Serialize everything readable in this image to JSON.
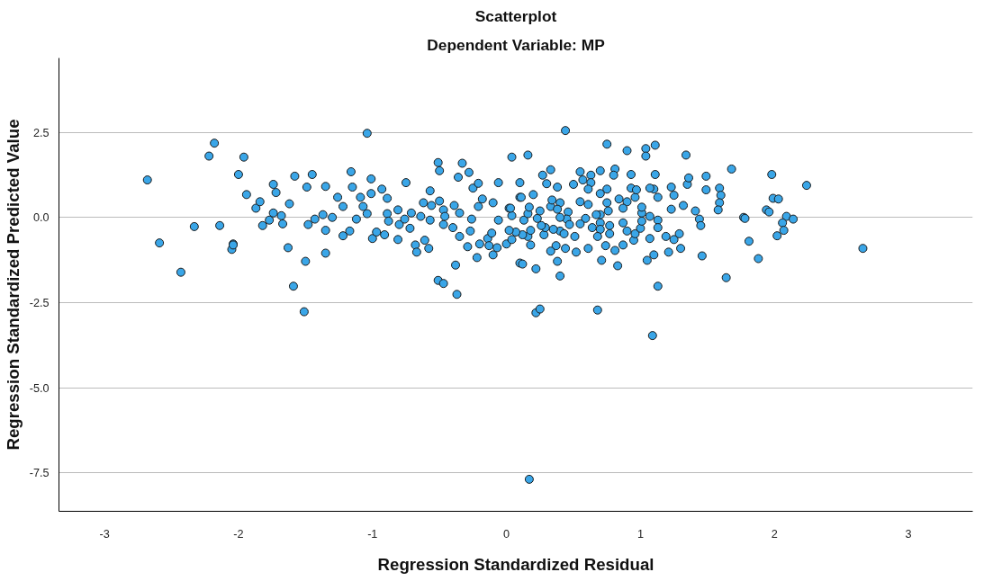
{
  "chart_data": {
    "type": "scatter",
    "title": "Scatterplot",
    "subtitle": "Dependent Variable: MP",
    "xlabel": "Regression Standardized Residual",
    "ylabel": "Regression Standardized Predicted Value",
    "xlim": [
      -3.34,
      3.48
    ],
    "ylim": [
      -8.63,
      4.68
    ],
    "xticks": [
      -3,
      -2,
      -1,
      0,
      1,
      2,
      3
    ],
    "yticks": [
      {
        "value": -7.5,
        "label": "-7.5"
      },
      {
        "value": -5.0,
        "label": "-5.0"
      },
      {
        "value": -2.5,
        "label": "-2.5"
      },
      {
        "value": 0.0,
        "label": "0.0"
      },
      {
        "value": 2.5,
        "label": "2.5"
      }
    ],
    "grid": "y",
    "marker": "circle",
    "series": [
      {
        "color": "#3aa6e8",
        "x": [
          -2.68,
          -2.59,
          -2.43,
          -2.18,
          -2.14,
          -2.04,
          -2.05,
          -1.94,
          -2.0,
          -1.96,
          -1.87,
          -1.84,
          -1.82,
          -1.77,
          -1.74,
          -1.74,
          -1.72,
          -1.68,
          -1.67,
          -1.62,
          -1.63,
          -1.58,
          -1.59,
          -1.5,
          -1.48,
          -1.49,
          -1.45,
          -1.43,
          -1.37,
          -1.35,
          -1.35,
          -1.35,
          -1.3,
          -1.26,
          -1.22,
          -1.22,
          -1.17,
          -1.16,
          -1.15,
          -1.09,
          -1.07,
          -1.04,
          -1.12,
          -1.04,
          -1.01,
          -1.01,
          -1.0,
          -0.97,
          -0.93,
          -0.91,
          -0.89,
          -0.89,
          -0.88,
          -0.81,
          -0.81,
          -0.8,
          -0.76,
          -0.75,
          -0.72,
          -0.71,
          -0.68,
          -0.67,
          -0.64,
          -0.62,
          -0.61,
          -0.58,
          -0.57,
          -0.57,
          -0.56,
          -0.51,
          -0.5,
          -0.51,
          -0.47,
          -0.5,
          -0.47,
          -0.47,
          -0.46,
          -0.4,
          -0.39,
          -0.38,
          -0.37,
          -0.36,
          -0.35,
          -0.35,
          -0.33,
          -0.29,
          -0.28,
          -0.26,
          -0.27,
          -0.25,
          -0.21,
          -0.22,
          -0.21,
          -0.2,
          -0.18,
          -0.14,
          -0.13,
          -0.11,
          -0.1,
          -0.07,
          -0.1,
          -0.06,
          -0.06,
          0.0,
          0.02,
          0.04,
          0.04,
          0.1,
          0.1,
          0.1,
          0.44,
          0.16,
          0.75,
          0.9,
          1.04,
          1.04,
          1.11,
          1.34,
          1.68,
          1.98,
          2.24,
          2.66,
          1.64,
          1.13,
          0.4,
          0.22,
          0.12,
          1.88,
          1.81,
          1.46,
          1.3,
          1.21,
          1.05,
          1.1,
          1.07,
          1.19,
          1.25,
          1.29,
          0.81,
          0.83,
          0.71,
          0.74,
          0.87,
          0.95,
          0.96,
          1.0,
          1.01,
          1.07,
          1.13,
          1.13,
          1.01,
          1.01,
          0.96,
          0.93,
          0.97,
          1.1,
          1.13,
          1.07,
          1.11,
          0.93,
          0.81,
          0.8,
          0.7,
          0.75,
          0.7,
          0.63,
          0.63,
          0.61,
          0.57,
          0.55,
          0.5,
          0.38,
          0.33,
          0.27,
          0.3,
          0.2,
          0.11,
          0.55,
          0.61,
          0.75,
          0.84,
          0.9,
          0.76,
          0.87,
          0.7,
          0.67,
          0.59,
          0.55,
          0.7,
          0.64,
          0.7,
          0.77,
          0.87,
          0.9,
          0.77,
          0.68,
          0.61,
          0.52,
          0.51,
          0.44,
          0.38,
          0.37,
          0.33,
          0.4,
          0.43,
          0.35,
          0.28,
          0.29,
          0.26,
          0.18,
          0.16,
          0.12,
          0.04,
          0.07,
          0.02,
          0.18,
          0.13,
          0.23,
          0.25,
          0.16,
          0.17,
          0.46,
          0.45,
          0.4,
          0.47,
          0.4,
          0.33,
          0.38,
          0.34,
          0.03,
          1.41,
          1.44,
          1.45,
          1.32,
          1.23,
          1.25,
          1.23,
          1.35,
          1.36,
          1.49,
          1.49,
          1.59,
          1.6,
          1.59,
          1.58,
          1.77,
          1.78,
          1.94,
          1.96,
          1.99,
          2.03,
          2.09,
          2.14,
          2.06,
          2.07,
          2.02,
          0.17,
          1.09,
          0.22,
          0.25,
          0.68,
          -1.51,
          -2.33,
          -2.22,
          -2.04
        ],
        "values": [
          1.1,
          -0.75,
          -1.61,
          2.18,
          -0.24,
          -0.78,
          -0.94,
          0.67,
          1.26,
          1.77,
          0.27,
          0.46,
          -0.24,
          -0.08,
          0.13,
          0.97,
          0.73,
          0.05,
          -0.19,
          0.4,
          -0.89,
          1.21,
          -2.02,
          -1.29,
          -0.21,
          0.89,
          1.26,
          -0.05,
          0.08,
          -0.38,
          -1.05,
          0.91,
          0.0,
          0.59,
          0.32,
          -0.54,
          -0.4,
          1.34,
          0.89,
          0.59,
          0.32,
          0.11,
          -0.05,
          2.47,
          1.13,
          0.7,
          -0.62,
          -0.43,
          0.83,
          -0.51,
          0.56,
          0.11,
          -0.11,
          0.22,
          -0.65,
          -0.21,
          -0.05,
          1.02,
          -0.32,
          0.13,
          -0.81,
          -1.02,
          0.03,
          0.43,
          -0.67,
          -0.91,
          -0.08,
          0.78,
          0.35,
          1.61,
          1.37,
          -1.85,
          -1.94,
          0.48,
          -0.21,
          0.22,
          0.03,
          -0.3,
          0.35,
          -1.4,
          -2.26,
          1.18,
          -0.56,
          0.13,
          1.59,
          -0.86,
          1.32,
          -0.05,
          -0.4,
          0.86,
          1.0,
          -1.18,
          0.32,
          -0.78,
          0.54,
          -0.62,
          -0.83,
          -0.46,
          -1.1,
          -0.89,
          0.43,
          1.02,
          -0.08,
          -0.78,
          0.27,
          1.77,
          0.05,
          1.02,
          0.59,
          -1.34,
          2.55,
          1.83,
          2.15,
          1.96,
          2.02,
          1.8,
          2.12,
          1.83,
          1.42,
          1.26,
          0.94,
          -0.91,
          -1.77,
          -2.02,
          -1.72,
          -1.51,
          -1.37,
          -1.21,
          -0.7,
          -1.13,
          -0.91,
          -1.02,
          -1.26,
          -1.1,
          -0.62,
          -0.56,
          -0.65,
          -0.48,
          -0.97,
          -1.42,
          -1.26,
          -0.83,
          -0.81,
          -0.67,
          -0.48,
          -0.32,
          -0.11,
          0.03,
          -0.08,
          -0.3,
          0.13,
          0.3,
          0.59,
          0.86,
          0.81,
          0.83,
          0.59,
          0.86,
          1.26,
          1.26,
          1.42,
          1.24,
          1.37,
          0.83,
          0.7,
          1.24,
          1.02,
          0.83,
          1.1,
          1.34,
          0.97,
          0.89,
          1.4,
          1.24,
          0.99,
          0.67,
          0.59,
          0.46,
          0.38,
          0.43,
          0.54,
          0.46,
          0.19,
          0.27,
          0.08,
          0.08,
          -0.03,
          -0.19,
          -0.16,
          -0.3,
          -0.35,
          -0.24,
          -0.16,
          -0.4,
          -0.48,
          -0.56,
          -0.91,
          -1.02,
          -0.56,
          -0.91,
          -1.29,
          -0.83,
          -0.99,
          -0.4,
          -0.48,
          -0.35,
          -0.51,
          -0.3,
          -0.24,
          -0.81,
          -0.56,
          -0.51,
          -0.65,
          -0.43,
          -0.38,
          -0.38,
          -0.08,
          -0.03,
          0.19,
          0.11,
          0.3,
          0.16,
          -0.05,
          0.0,
          -0.21,
          0.43,
          0.32,
          0.24,
          0.51,
          0.27,
          0.19,
          -0.05,
          -0.24,
          0.35,
          0.24,
          0.65,
          0.89,
          0.97,
          1.16,
          1.21,
          0.81,
          0.86,
          0.65,
          0.43,
          0.22,
          0.0,
          -0.03,
          0.22,
          0.16,
          0.56,
          0.54,
          0.03,
          -0.05,
          -0.16,
          -0.38,
          -0.54,
          -7.69,
          -3.47,
          -2.8,
          -2.69,
          -2.72,
          -2.77,
          -0.27,
          1.8,
          -0.81
        ]
      }
    ]
  }
}
